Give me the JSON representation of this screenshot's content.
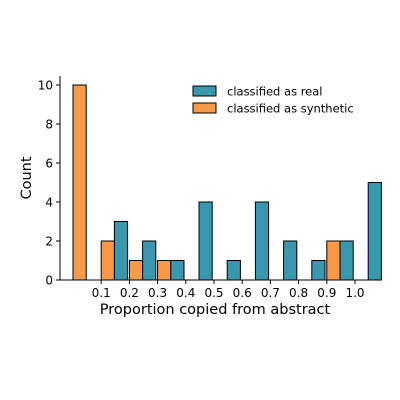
{
  "chart_data": {
    "type": "bar",
    "xlabel": "Proportion copied from abstract",
    "ylabel": "Count",
    "bin_edges": [
      0.0,
      0.1,
      0.2,
      0.3,
      0.4,
      0.5,
      0.6,
      0.7,
      0.8,
      0.9,
      1.0
    ],
    "xticks": [
      "0.1",
      "0.2",
      "0.3",
      "0.4",
      "0.5",
      "0.6",
      "0.7",
      "0.8",
      "0.9",
      "1.0"
    ],
    "ylim": [
      0,
      10.5
    ],
    "yticks": [
      "0",
      "2",
      "4",
      "6",
      "8",
      "10"
    ],
    "legend_position": "top-right",
    "grid": false,
    "series": [
      {
        "name": "classified as real",
        "color": "#3a97ae",
        "values": [
          0,
          3,
          2,
          1,
          4,
          1,
          4,
          2,
          1,
          2,
          5
        ]
      },
      {
        "name": "classified as synthetic",
        "color": "#f69a4a",
        "values": [
          10,
          2,
          1,
          1,
          0,
          0,
          0,
          0,
          0,
          2,
          0
        ]
      }
    ]
  }
}
